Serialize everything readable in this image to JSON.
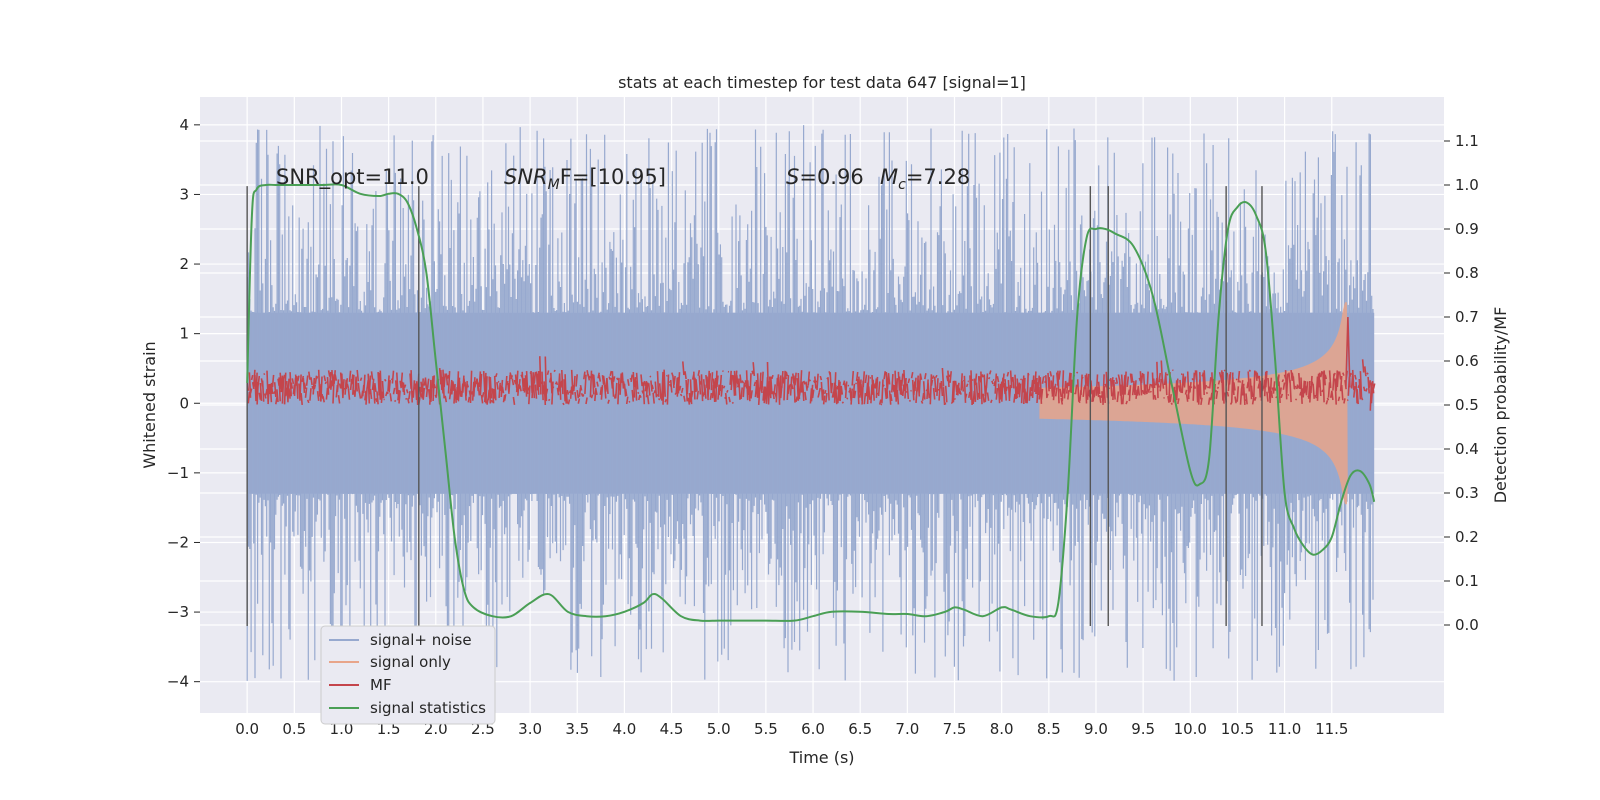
{
  "chart_data": {
    "type": "line",
    "title": "stats at each timestep for test data 647 [signal=1]",
    "xlabel": "Time (s)",
    "ylabel": "Whitened strain",
    "ylabel_right": "Detection probability/MF",
    "xlim": [
      -0.5,
      12.69
    ],
    "ylim": [
      -4.45,
      4.4
    ],
    "ylim_right": [
      -0.2,
      1.2
    ],
    "x_ticks": [
      "0.0",
      "0.5",
      "1.0",
      "1.5",
      "2.0",
      "2.5",
      "3.0",
      "3.5",
      "4.0",
      "4.5",
      "5.0",
      "5.5",
      "6.0",
      "6.5",
      "7.0",
      "7.5",
      "8.0",
      "8.5",
      "9.0",
      "9.5",
      "10.0",
      "10.5",
      "11.0",
      "11.5"
    ],
    "y_ticks": [
      "4",
      "3",
      "2",
      "1",
      "0",
      "−1",
      "−2",
      "−3",
      "−4"
    ],
    "y_ticks_right": [
      "1.1",
      "1.0",
      "0.9",
      "0.8",
      "0.7",
      "0.6",
      "0.5",
      "0.4",
      "0.3",
      "0.2",
      "0.1",
      "0.0"
    ],
    "grid": true,
    "legend_position": "lower-left",
    "annotations": {
      "snr_opt": "SNR_opt=11.0",
      "snr_mf_sym": "SNR",
      "snr_mf_sub": "M",
      "snr_mf_tail": "F=[10.95]",
      "s_sym": "S",
      "s_val": "=0.96",
      "mc_sym": "M",
      "mc_sub": "c",
      "mc_val": "=7.28"
    },
    "vertical_markers_s": [
      0.0,
      1.82,
      8.94,
      9.13,
      10.38,
      10.76
    ],
    "series": [
      {
        "name": "signal+ noise",
        "color": "#97a9cf",
        "axis": "left",
        "x_range": [
          0.0,
          11.95
        ],
        "envelope_abs": 1.3,
        "peak_range": [
          2.0,
          4.0
        ]
      },
      {
        "name": "signal only",
        "color": "#e8a58a",
        "axis": "left",
        "description_points": [
          [
            8.5,
            0.03
          ],
          [
            10.0,
            0.12
          ],
          [
            11.0,
            0.3
          ],
          [
            11.6,
            0.8
          ],
          [
            11.65,
            1.4
          ],
          [
            11.68,
            -1.2
          ]
        ]
      },
      {
        "name": "MF",
        "color": "#c4454c",
        "axis": "right",
        "baseline": 0.54,
        "amplitude": 0.04,
        "spike": [
          11.65,
          0.7
        ]
      },
      {
        "name": "signal statistics",
        "color": "#4a9f55",
        "axis": "right",
        "x": [
          0.0,
          0.05,
          0.1,
          0.2,
          0.3,
          0.5,
          0.8,
          1.0,
          1.2,
          1.4,
          1.5,
          1.6,
          1.7,
          1.8,
          1.9,
          2.0,
          2.1,
          2.2,
          2.3,
          2.4,
          2.6,
          2.8,
          3.0,
          3.2,
          3.4,
          3.6,
          3.8,
          4.0,
          4.2,
          4.3,
          4.4,
          4.6,
          4.8,
          5.0,
          5.2,
          5.5,
          5.8,
          6.0,
          6.2,
          6.5,
          6.8,
          7.0,
          7.2,
          7.4,
          7.5,
          7.6,
          7.8,
          8.0,
          8.1,
          8.3,
          8.5,
          8.6,
          8.7,
          8.8,
          8.9,
          9.0,
          9.1,
          9.2,
          9.4,
          9.6,
          9.8,
          10.0,
          10.1,
          10.2,
          10.3,
          10.4,
          10.5,
          10.6,
          10.7,
          10.8,
          10.9,
          11.0,
          11.1,
          11.2,
          11.3,
          11.4,
          11.5,
          11.6,
          11.7,
          11.8,
          11.9,
          11.95
        ],
        "y": [
          0.55,
          0.93,
          0.99,
          1.0,
          1.0,
          1.0,
          1.0,
          1.0,
          0.98,
          0.975,
          0.98,
          0.98,
          0.96,
          0.9,
          0.8,
          0.6,
          0.4,
          0.2,
          0.08,
          0.04,
          0.02,
          0.02,
          0.05,
          0.07,
          0.03,
          0.02,
          0.02,
          0.03,
          0.05,
          0.07,
          0.06,
          0.02,
          0.01,
          0.01,
          0.01,
          0.01,
          0.01,
          0.02,
          0.03,
          0.03,
          0.025,
          0.025,
          0.02,
          0.03,
          0.04,
          0.035,
          0.02,
          0.04,
          0.035,
          0.02,
          0.02,
          0.05,
          0.3,
          0.7,
          0.88,
          0.9,
          0.9,
          0.89,
          0.86,
          0.75,
          0.55,
          0.35,
          0.32,
          0.38,
          0.7,
          0.9,
          0.95,
          0.96,
          0.93,
          0.85,
          0.6,
          0.3,
          0.22,
          0.18,
          0.16,
          0.17,
          0.2,
          0.28,
          0.34,
          0.35,
          0.32,
          0.28
        ]
      }
    ]
  }
}
